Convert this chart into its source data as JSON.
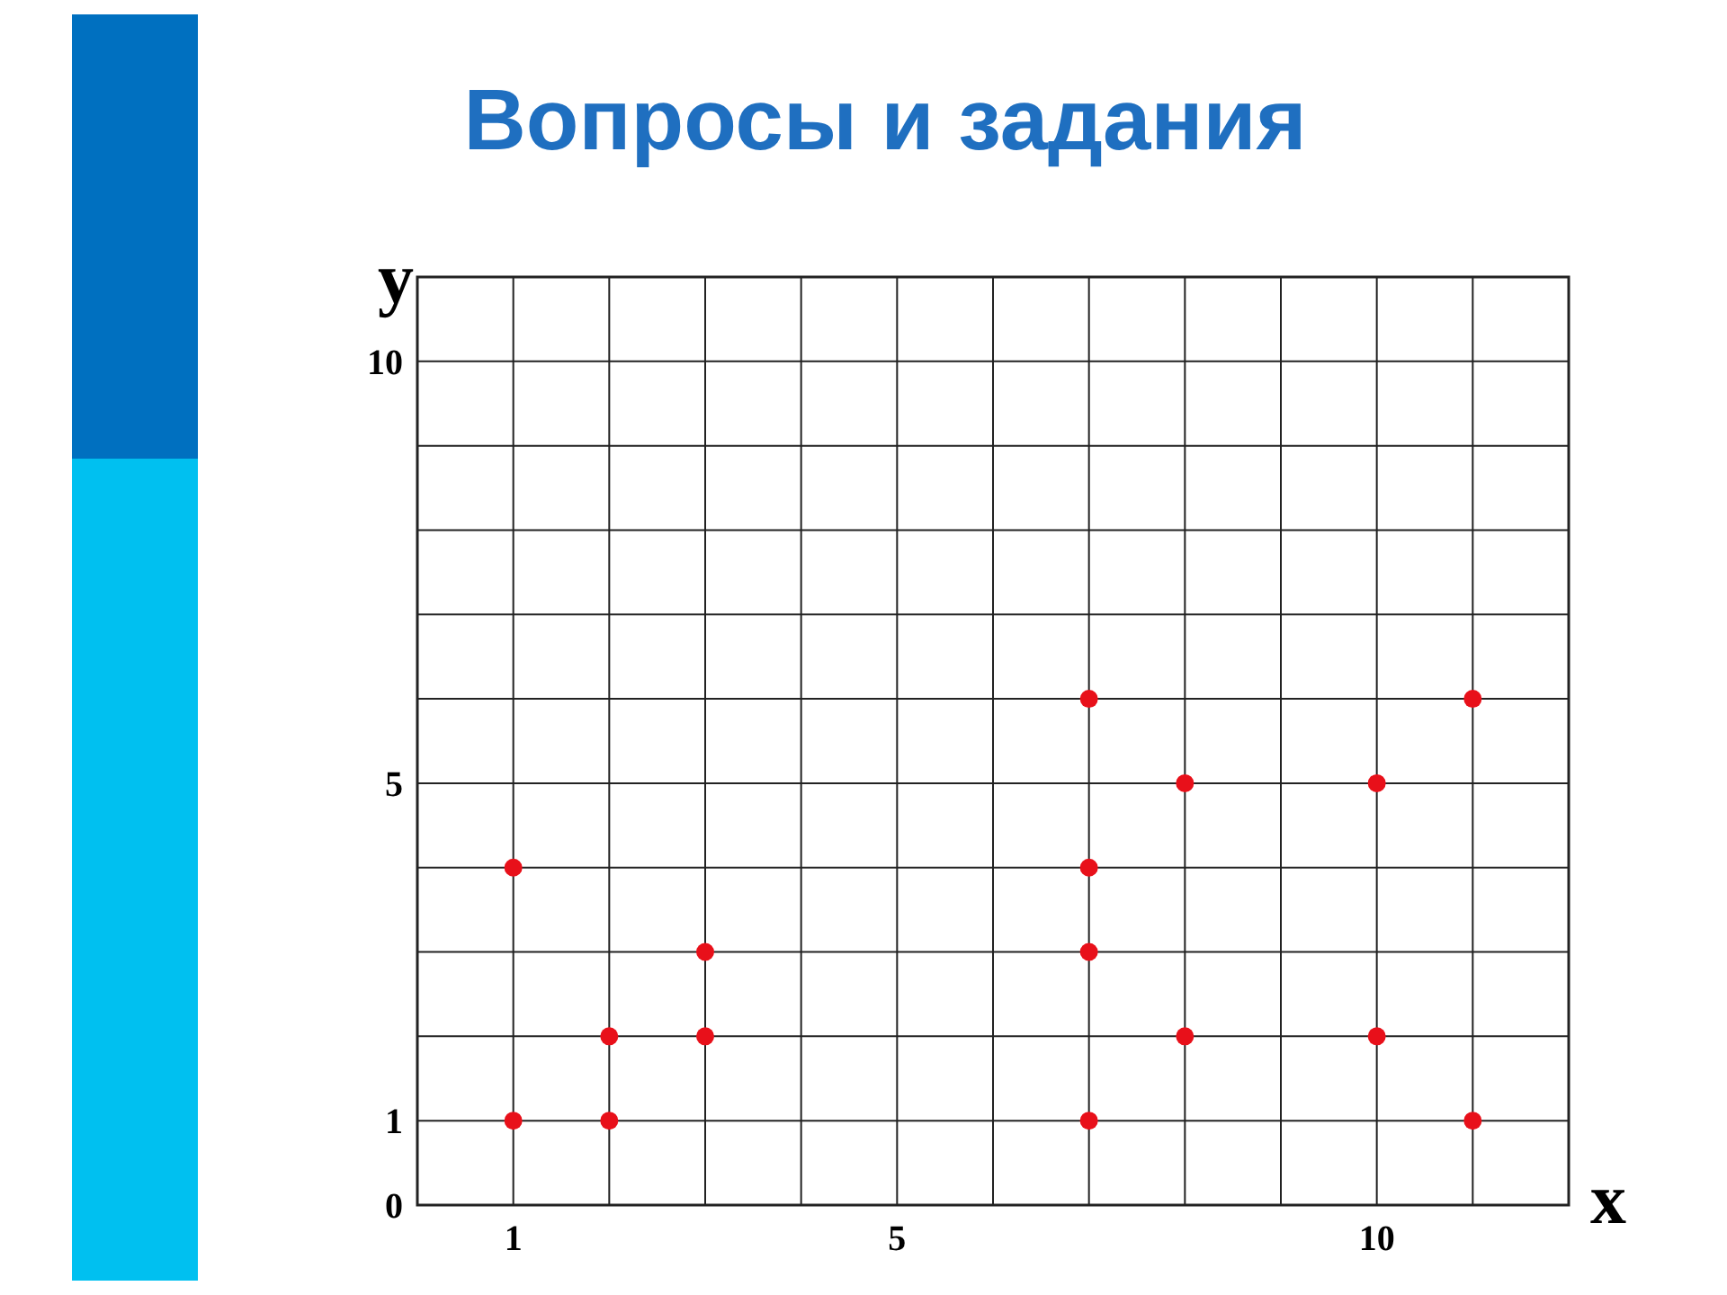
{
  "chart_data": {
    "type": "scatter",
    "title": "Вопросы и задания",
    "xlabel": "x",
    "ylabel": "y",
    "x": [
      1,
      1,
      2,
      2,
      3,
      3,
      7,
      7,
      7,
      7,
      8,
      8,
      10,
      10,
      11,
      11
    ],
    "series": [
      {
        "color": "#e8101a",
        "values": [
          4,
          1,
          2,
          1,
          2,
          3,
          6,
          4,
          3,
          1,
          5,
          2,
          5,
          2,
          6,
          1
        ]
      }
    ],
    "xlim": [
      0,
      12
    ],
    "ylim": [
      0,
      11
    ],
    "xticks": [
      {
        "value": 0,
        "label": null
      },
      1,
      {
        "value": 2,
        "label": null
      },
      {
        "value": 3,
        "label": null
      },
      {
        "value": 4,
        "label": null
      },
      5,
      {
        "value": 6,
        "label": null
      },
      {
        "value": 7,
        "label": null
      },
      {
        "value": 8,
        "label": null
      },
      {
        "value": 9,
        "label": null
      },
      10,
      {
        "value": 11,
        "label": null
      },
      {
        "value": 12,
        "label": null
      }
    ],
    "yticks": [
      0,
      1,
      {
        "value": 2,
        "label": null
      },
      {
        "value": 3,
        "label": null
      },
      {
        "value": 4,
        "label": null
      },
      5,
      {
        "value": 6,
        "label": null
      },
      {
        "value": 7,
        "label": null
      },
      {
        "value": 8,
        "label": null
      },
      {
        "value": 9,
        "label": null
      },
      10,
      {
        "value": 11,
        "label": null
      }
    ],
    "grid": true,
    "marker": "circle"
  }
}
